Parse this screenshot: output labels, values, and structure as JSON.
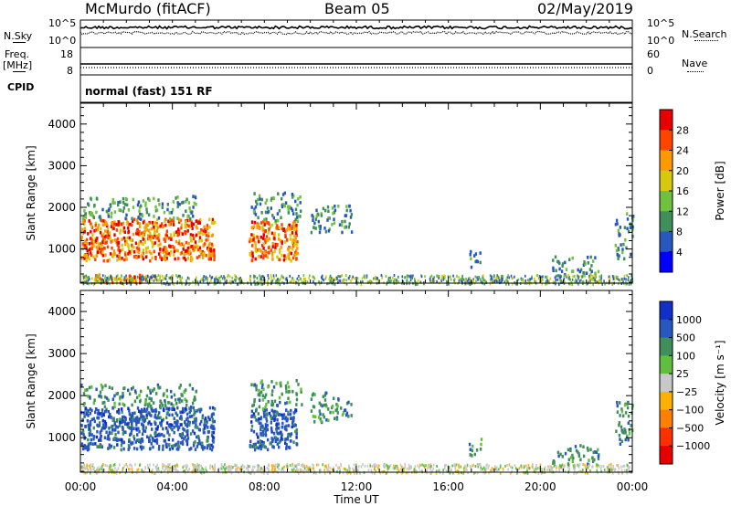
{
  "header": {
    "station": "McMurdo (fitACF)",
    "beam": "Beam 05",
    "date": "02/May/2019"
  },
  "top_strip": {
    "left_label": "N.Sky",
    "right_label": "N.Search",
    "tick_top": "10^5",
    "tick_bottom": "10^0"
  },
  "freq_strip": {
    "left_label_1": "Freq.",
    "left_label_2": "[MHz]",
    "left_tick_top": "18",
    "left_tick_bottom": "8",
    "right_label": "Nave",
    "right_tick_top": "60",
    "right_tick_bottom": "0"
  },
  "cpid": {
    "label": "CPID",
    "value": "normal (fast) 151 RF"
  },
  "chart_data": [
    {
      "type": "heatmap",
      "parameter": "Power",
      "ylabel": "Slant Range [km]",
      "ylim": [
        180,
        4500
      ],
      "yticks": [
        "1000",
        "2000",
        "3000",
        "4000"
      ],
      "colorbar_label": "Power [dB]",
      "colorbar_ticks": [
        "4",
        "8",
        "12",
        "16",
        "20",
        "24",
        "28"
      ],
      "colorbar_colors": [
        "#0000ff",
        "#2857c0",
        "#3f8f5a",
        "#70c13f",
        "#d6c80c",
        "#ff9900",
        "#ff4400",
        "#e60000"
      ],
      "scatter_regions": [
        {
          "t0": 0.0,
          "t1": 5.8,
          "r0": 750,
          "r1": 1750,
          "level": "high"
        },
        {
          "t0": 0.0,
          "t1": 5.0,
          "r0": 1750,
          "r1": 2300,
          "level": "low"
        },
        {
          "t0": 0.6,
          "t1": 3.2,
          "r0": 220,
          "r1": 420,
          "level": "high"
        },
        {
          "t0": 7.3,
          "t1": 9.4,
          "r0": 750,
          "r1": 1700,
          "level": "high"
        },
        {
          "t0": 7.4,
          "t1": 9.6,
          "r0": 1700,
          "r1": 2400,
          "level": "low"
        },
        {
          "t0": 10.0,
          "t1": 11.8,
          "r0": 1400,
          "r1": 2100,
          "level": "low"
        },
        {
          "t0": 16.8,
          "t1": 17.4,
          "r0": 600,
          "r1": 1000,
          "level": "low"
        },
        {
          "t0": 20.5,
          "t1": 22.5,
          "r0": 350,
          "r1": 850,
          "level": "low"
        },
        {
          "t0": 23.2,
          "t1": 24.0,
          "r0": 800,
          "r1": 1900,
          "level": "low"
        }
      ]
    },
    {
      "type": "heatmap",
      "parameter": "Velocity",
      "ylabel": "Slant Range [km]",
      "ylim": [
        180,
        4500
      ],
      "yticks": [
        "1000",
        "2000",
        "3000",
        "4000"
      ],
      "colorbar_label": "Velocity [m s⁻¹]",
      "colorbar_ticks": [
        "1000",
        "500",
        "100",
        "25",
        "−25",
        "−100",
        "−500",
        "−1000"
      ],
      "colorbar_colors": [
        "#1030c8",
        "#2857c0",
        "#3f8f5a",
        "#5fbf3f",
        "#c8c8c8",
        "#ffb000",
        "#ff8000",
        "#ff3000",
        "#e60000"
      ],
      "scatter_regions": [
        {
          "t0": 0.0,
          "t1": 5.8,
          "r0": 750,
          "r1": 1750,
          "level": "high"
        },
        {
          "t0": 0.0,
          "t1": 5.0,
          "r0": 1750,
          "r1": 2300,
          "level": "low"
        },
        {
          "t0": 7.3,
          "t1": 9.4,
          "r0": 750,
          "r1": 1700,
          "level": "high"
        },
        {
          "t0": 7.4,
          "t1": 9.6,
          "r0": 1700,
          "r1": 2400,
          "level": "low"
        },
        {
          "t0": 10.0,
          "t1": 11.8,
          "r0": 1400,
          "r1": 2100,
          "level": "low"
        },
        {
          "t0": 16.8,
          "t1": 17.4,
          "r0": 600,
          "r1": 1000,
          "level": "low"
        },
        {
          "t0": 20.5,
          "t1": 22.5,
          "r0": 350,
          "r1": 850,
          "level": "low"
        },
        {
          "t0": 23.2,
          "t1": 24.0,
          "r0": 800,
          "r1": 1900,
          "level": "low"
        }
      ]
    }
  ],
  "xaxis": {
    "label": "Time UT",
    "ticks": [
      "00:00",
      "04:00",
      "08:00",
      "12:00",
      "16:00",
      "20:00",
      "00:00"
    ]
  }
}
